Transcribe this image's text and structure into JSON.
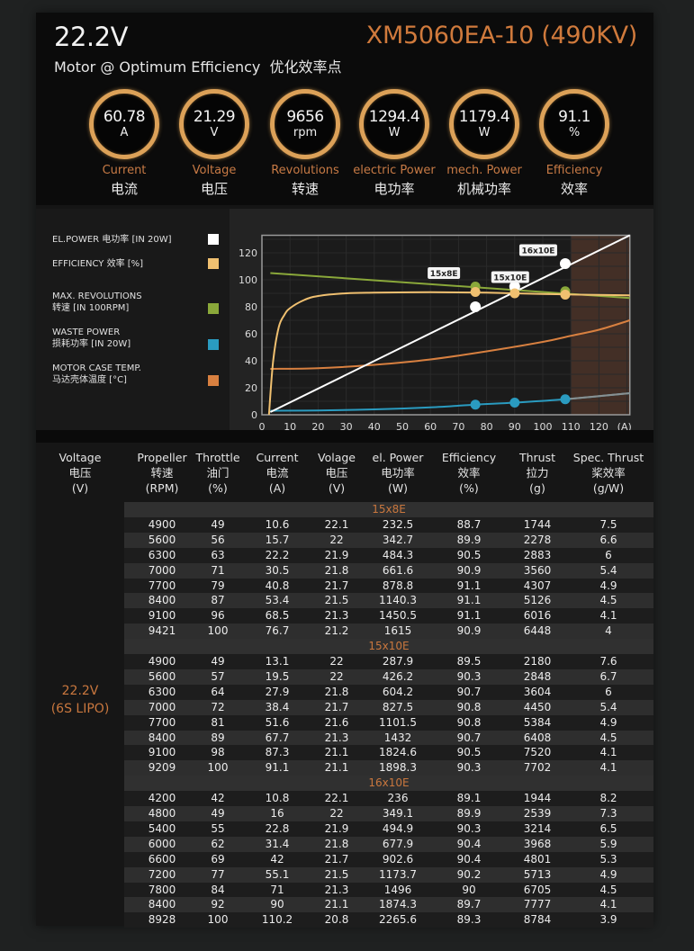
{
  "header": {
    "voltage": "22.2V",
    "model": "XM5060EA-10 (490KV)",
    "subtitle": "Motor @ Optimum Efficiency  优化效率点",
    "accent_color": "#d07a3c",
    "gauges": [
      {
        "value": "60.78",
        "unit": "A",
        "label_en": "Current",
        "label_cn": "电流"
      },
      {
        "value": "21.29",
        "unit": "V",
        "label_en": "Voltage",
        "label_cn": "电压"
      },
      {
        "value": "9656",
        "unit": "rpm",
        "label_en": "Revolutions",
        "label_cn": "转速"
      },
      {
        "value": "1294.4",
        "unit": "W",
        "label_en": "electric Power",
        "label_cn": "电功率"
      },
      {
        "value": "1179.4",
        "unit": "W",
        "label_en": "mech. Power",
        "label_cn": "机械功率"
      },
      {
        "value": "91.1",
        "unit": "%",
        "label_en": "Efficiency",
        "label_cn": "效率"
      }
    ]
  },
  "chart_data": {
    "type": "line",
    "xlabel": "(A)",
    "xlim": [
      0,
      131
    ],
    "ylim": [
      0,
      133
    ],
    "x_ticks": [
      "0",
      "10",
      "20",
      "30",
      "40",
      "50",
      "60",
      "70",
      "80",
      "90",
      "100",
      "110",
      "120"
    ],
    "y_ticks": [
      "0",
      "20",
      "40",
      "60",
      "80",
      "100",
      "120"
    ],
    "grid": true,
    "shaded_region": {
      "from": 110,
      "to": 131,
      "color": "#4a3328"
    },
    "legend": [
      {
        "label_line1": "EL.POWER 电功率 [IN 20W]",
        "label_line2": "",
        "color": "#ffffff"
      },
      {
        "label_line1": "EFFICIENCY 效率 [%]",
        "label_line2": "",
        "color": "#f0c070"
      },
      {
        "label_line1": "MAX. REVOLUTIONS",
        "label_line2": "转速 [IN 100RPM]",
        "color": "#8aa83a"
      },
      {
        "label_line1": "WASTE POWER",
        "label_line2": "损耗功率 [IN 20W]",
        "color": "#2a9bc0"
      },
      {
        "label_line1": "MOTOR CASE TEMP.",
        "label_line2": "马达壳体温度 [°C]",
        "color": "#d88040"
      }
    ],
    "series": [
      {
        "name": "EL.POWER",
        "color": "#ffffff",
        "x": [
          3,
          131
        ],
        "y": [
          2,
          133
        ]
      },
      {
        "name": "EFFICIENCY",
        "color": "#f0c070",
        "x": [
          2.5,
          4,
          6,
          8,
          10,
          15,
          20,
          30,
          40,
          60,
          80,
          100,
          120,
          131
        ],
        "y": [
          0,
          40,
          65,
          74,
          79,
          85,
          88,
          90,
          90.5,
          90.8,
          90.5,
          89.5,
          88.8,
          88.5
        ]
      },
      {
        "name": "MAX. REVOLUTIONS",
        "color": "#8aa83a",
        "x": [
          3,
          131
        ],
        "y": [
          105,
          86.5
        ]
      },
      {
        "name": "WASTE POWER",
        "color": "#2a9bc0",
        "x": [
          3,
          20,
          40,
          60,
          76,
          90,
          108,
          131
        ],
        "y": [
          3,
          3.2,
          4,
          5.5,
          7.5,
          9,
          11.5,
          16
        ]
      },
      {
        "name": "MOTOR CASE TEMP.",
        "color": "#d88040",
        "x": [
          3,
          20,
          40,
          60,
          80,
          100,
          110,
          120,
          131
        ],
        "y": [
          34,
          34.5,
          37,
          41,
          47,
          54,
          58.5,
          63,
          70
        ]
      }
    ],
    "markers": [
      {
        "label": "15x8E",
        "x": 76,
        "el_power": 80,
        "efficiency": 91,
        "revolutions": 95,
        "waste": 7.5
      },
      {
        "label": "15x10E",
        "x": 90,
        "el_power": 95,
        "efficiency": 90,
        "revolutions": 93,
        "waste": 9
      },
      {
        "label": "16x10E",
        "x": 108,
        "el_power": 112,
        "efficiency": 89,
        "revolutions": 91.5,
        "waste": 11.5
      }
    ]
  },
  "table": {
    "headers": [
      {
        "en": "Voltage",
        "cn": "电压",
        "unit": "(V)"
      },
      {
        "en": "Propeller",
        "cn": "转速",
        "unit": "(RPM)"
      },
      {
        "en": "Throttle",
        "cn": "油门",
        "unit": "(%)"
      },
      {
        "en": "Current",
        "cn": "电流",
        "unit": "(A)"
      },
      {
        "en": "Volage",
        "cn": "电压",
        "unit": "(V)"
      },
      {
        "en": "el. Power",
        "cn": "电功率",
        "unit": "(W)"
      },
      {
        "en": "Efficiency",
        "cn": "效率",
        "unit": "(%)"
      },
      {
        "en": "Thrust",
        "cn": "拉力",
        "unit": "(g)"
      },
      {
        "en": "Spec. Thrust",
        "cn": "桨效率",
        "unit": "(g/W)"
      }
    ],
    "voltage_label": "22.2V",
    "battery_label": "(6S LIPO)",
    "groups": [
      {
        "name": "15x8E",
        "rows": [
          [
            "4900",
            "49",
            "10.6",
            "22.1",
            "232.5",
            "88.7",
            "1744",
            "7.5"
          ],
          [
            "5600",
            "56",
            "15.7",
            "22",
            "342.7",
            "89.9",
            "2278",
            "6.6"
          ],
          [
            "6300",
            "63",
            "22.2",
            "21.9",
            "484.3",
            "90.5",
            "2883",
            "6"
          ],
          [
            "7000",
            "71",
            "30.5",
            "21.8",
            "661.6",
            "90.9",
            "3560",
            "5.4"
          ],
          [
            "7700",
            "79",
            "40.8",
            "21.7",
            "878.8",
            "91.1",
            "4307",
            "4.9"
          ],
          [
            "8400",
            "87",
            "53.4",
            "21.5",
            "1140.3",
            "91.1",
            "5126",
            "4.5"
          ],
          [
            "9100",
            "96",
            "68.5",
            "21.3",
            "1450.5",
            "91.1",
            "6016",
            "4.1"
          ],
          [
            "9421",
            "100",
            "76.7",
            "21.2",
            "1615",
            "90.9",
            "6448",
            "4"
          ]
        ]
      },
      {
        "name": "15x10E",
        "rows": [
          [
            "4900",
            "49",
            "13.1",
            "22",
            "287.9",
            "89.5",
            "2180",
            "7.6"
          ],
          [
            "5600",
            "57",
            "19.5",
            "22",
            "426.2",
            "90.3",
            "2848",
            "6.7"
          ],
          [
            "6300",
            "64",
            "27.9",
            "21.8",
            "604.2",
            "90.7",
            "3604",
            "6"
          ],
          [
            "7000",
            "72",
            "38.4",
            "21.7",
            "827.5",
            "90.8",
            "4450",
            "5.4"
          ],
          [
            "7700",
            "81",
            "51.6",
            "21.6",
            "1101.5",
            "90.8",
            "5384",
            "4.9"
          ],
          [
            "8400",
            "89",
            "67.7",
            "21.3",
            "1432",
            "90.7",
            "6408",
            "4.5"
          ],
          [
            "9100",
            "98",
            "87.3",
            "21.1",
            "1824.6",
            "90.5",
            "7520",
            "4.1"
          ],
          [
            "9209",
            "100",
            "91.1",
            "21.1",
            "1898.3",
            "90.3",
            "7702",
            "4.1"
          ]
        ]
      },
      {
        "name": "16x10E",
        "rows": [
          [
            "4200",
            "42",
            "10.8",
            "22.1",
            "236",
            "89.1",
            "1944",
            "8.2"
          ],
          [
            "4800",
            "49",
            "16",
            "22",
            "349.1",
            "89.9",
            "2539",
            "7.3"
          ],
          [
            "5400",
            "55",
            "22.8",
            "21.9",
            "494.9",
            "90.3",
            "3214",
            "6.5"
          ],
          [
            "6000",
            "62",
            "31.4",
            "21.8",
            "677.9",
            "90.4",
            "3968",
            "5.9"
          ],
          [
            "6600",
            "69",
            "42",
            "21.7",
            "902.6",
            "90.4",
            "4801",
            "5.3"
          ],
          [
            "7200",
            "77",
            "55.1",
            "21.5",
            "1173.7",
            "90.2",
            "5713",
            "4.9"
          ],
          [
            "7800",
            "84",
            "71",
            "21.3",
            "1496",
            "90",
            "6705",
            "4.5"
          ],
          [
            "8400",
            "92",
            "90",
            "21.1",
            "1874.3",
            "89.7",
            "7777",
            "4.1"
          ],
          [
            "8928",
            "100",
            "110.2",
            "20.8",
            "2265.6",
            "89.3",
            "8784",
            "3.9"
          ]
        ]
      }
    ]
  }
}
